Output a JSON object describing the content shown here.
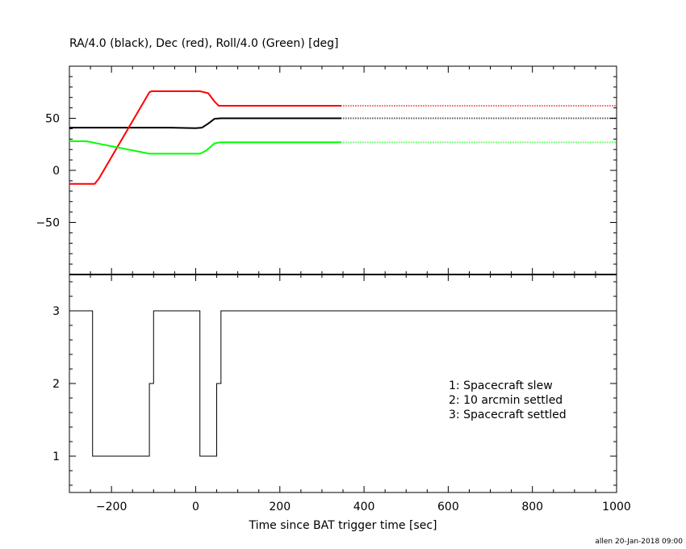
{
  "chart_data": [
    {
      "type": "line",
      "title": "RA/4.0 (black), Dec (red), Roll/4.0 (Green) [deg]",
      "xlim": [
        -300,
        1000
      ],
      "ylim": [
        -100,
        100
      ],
      "y_ticks": [
        -50,
        0,
        50
      ],
      "grid": false,
      "series": [
        {
          "color": "#000000",
          "solid": [
            [
              -300,
              41
            ],
            [
              -100,
              41
            ],
            [
              -60,
              41
            ],
            [
              0,
              40.5
            ],
            [
              15,
              41
            ],
            [
              30,
              45
            ],
            [
              45,
              49.5
            ],
            [
              60,
              50
            ],
            [
              345,
              50
            ]
          ],
          "dotted": [
            [
              345,
              50
            ],
            [
              1000,
              50
            ]
          ]
        },
        {
          "color": "#ff0000",
          "solid": [
            [
              -300,
              -13
            ],
            [
              -240,
              -13
            ],
            [
              -230,
              -8
            ],
            [
              -110,
              75
            ],
            [
              -105,
              76
            ],
            [
              10,
              76
            ],
            [
              30,
              74
            ],
            [
              45,
              66
            ],
            [
              55,
              62
            ],
            [
              345,
              62
            ]
          ],
          "dotted": [
            [
              345,
              62
            ],
            [
              1000,
              62
            ]
          ]
        },
        {
          "color": "#00ff00",
          "solid": [
            [
              -300,
              28
            ],
            [
              -260,
              28
            ],
            [
              -110,
              16
            ],
            [
              10,
              16
            ],
            [
              25,
              19
            ],
            [
              45,
              26
            ],
            [
              60,
              27
            ],
            [
              345,
              27
            ]
          ],
          "dotted": [
            [
              345,
              27
            ],
            [
              1000,
              27
            ]
          ]
        }
      ]
    },
    {
      "type": "line",
      "title": "",
      "xlabel": "Time since BAT trigger time [sec]",
      "xlim": [
        -300,
        1000
      ],
      "ylim": [
        0.5,
        3.5
      ],
      "x_ticks": [
        -200,
        0,
        200,
        400,
        600,
        800,
        1000
      ],
      "y_ticks": [
        1,
        2,
        3
      ],
      "grid": false,
      "series": [
        {
          "color": "#000000",
          "step": [
            [
              -300,
              3
            ],
            [
              -245,
              3
            ],
            [
              -245,
              1
            ],
            [
              -110,
              1
            ],
            [
              -110,
              2
            ],
            [
              -100,
              2
            ],
            [
              -100,
              3
            ],
            [
              10,
              3
            ],
            [
              10,
              1
            ],
            [
              50,
              1
            ],
            [
              50,
              2
            ],
            [
              60,
              2
            ],
            [
              60,
              3
            ],
            [
              1000,
              3
            ]
          ]
        }
      ],
      "annotations": [
        "1: Spacecraft slew",
        "2: 10 arcmin settled",
        "3: Spacecraft settled"
      ]
    }
  ],
  "footer": "allen 20-Jan-2018 09:00"
}
